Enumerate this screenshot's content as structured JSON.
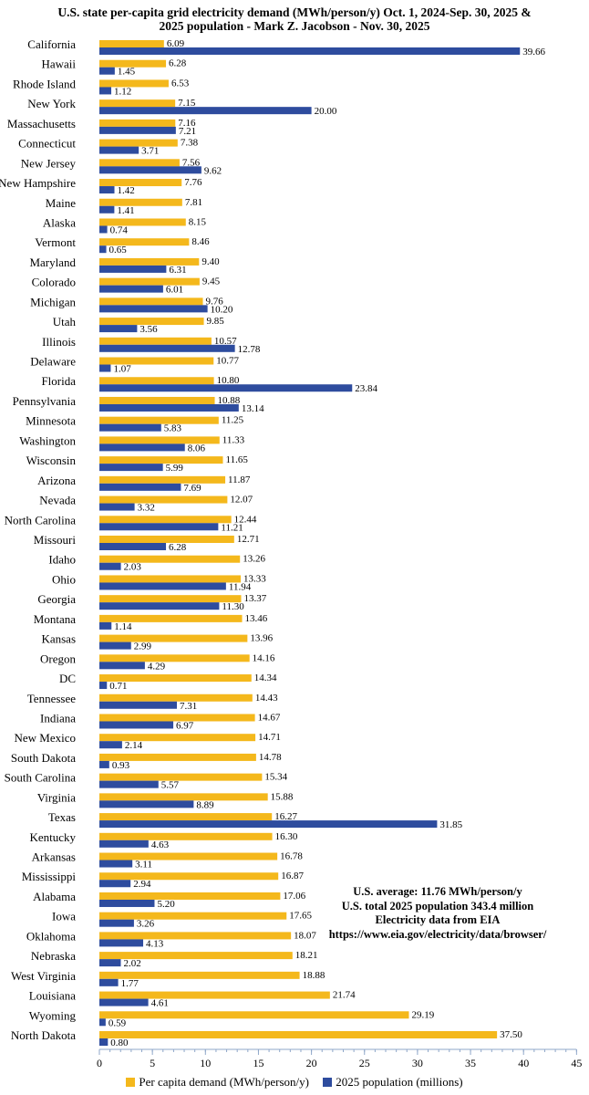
{
  "title": {
    "line1": "U.S. state per-capita grid electricity demand (MWh/person/y) Oct. 1, 2024-Sep. 30, 2025 &",
    "line2": "2025 population - Mark Z. Jacobson - Nov. 30, 2025"
  },
  "annotation": {
    "line1": "U.S. average: 11.76 MWh/person/y",
    "line2": "U.S. total 2025 population 343.4 million",
    "line3": "Electricity data from EIA",
    "line4": "https://www.eia.gov/electricity/data/browser/"
  },
  "legend": {
    "series1": "Per capita demand (MWh/person/y)",
    "series2": "2025 population (millions)"
  },
  "colors": {
    "demand": "#F4B81C",
    "population": "#2E4C9E",
    "axis": "#8FA7C9"
  },
  "chart_data": {
    "type": "bar",
    "orientation": "horizontal",
    "title": "U.S. state per-capita grid electricity demand (MWh/person/y) Oct. 1, 2024-Sep. 30, 2025 & 2025 population - Mark Z. Jacobson - Nov. 30, 2025",
    "xlabel": "",
    "ylabel": "",
    "xlim": [
      0,
      45
    ],
    "xticks": [
      0,
      5,
      10,
      15,
      20,
      25,
      30,
      35,
      40,
      45
    ],
    "grid": false,
    "legend_position": "bottom",
    "categories": [
      "California",
      "Hawaii",
      "Rhode Island",
      "New York",
      "Massachusetts",
      "Connecticut",
      "New Jersey",
      "New Hampshire",
      "Maine",
      "Alaska",
      "Vermont",
      "Maryland",
      "Colorado",
      "Michigan",
      "Utah",
      "Illinois",
      "Delaware",
      "Florida",
      "Pennsylvania",
      "Minnesota",
      "Washington",
      "Wisconsin",
      "Arizona",
      "Nevada",
      "North Carolina",
      "Missouri",
      "Idaho",
      "Ohio",
      "Georgia",
      "Montana",
      "Kansas",
      "Oregon",
      "DC",
      "Tennessee",
      "Indiana",
      "New Mexico",
      "South Dakota",
      "South Carolina",
      "Virginia",
      "Texas",
      "Kentucky",
      "Arkansas",
      "Mississippi",
      "Alabama",
      "Iowa",
      "Oklahoma",
      "Nebraska",
      "West Virginia",
      "Louisiana",
      "Wyoming",
      "North Dakota"
    ],
    "series": [
      {
        "name": "Per capita demand (MWh/person/y)",
        "values": [
          6.09,
          6.28,
          6.53,
          7.15,
          7.16,
          7.38,
          7.56,
          7.76,
          7.81,
          8.15,
          8.46,
          9.4,
          9.45,
          9.76,
          9.85,
          10.57,
          10.77,
          10.8,
          10.88,
          11.25,
          11.33,
          11.65,
          11.87,
          12.07,
          12.44,
          12.71,
          13.26,
          13.33,
          13.37,
          13.46,
          13.96,
          14.16,
          14.34,
          14.43,
          14.67,
          14.71,
          14.78,
          15.34,
          15.88,
          16.27,
          16.3,
          16.78,
          16.87,
          17.06,
          17.65,
          18.07,
          18.21,
          18.88,
          21.74,
          29.19,
          37.5
        ],
        "labels": [
          "6.09",
          "6.28",
          "6.53",
          "7.15",
          "7.16",
          "7.38",
          "7.56",
          "7.76",
          "7.81",
          "8.15",
          "8.46",
          "9.40",
          "9.45",
          "9.76",
          "9.85",
          "10.57",
          "10.77",
          "10.80",
          "10.88",
          "11.25",
          "11.33",
          "11.65",
          "11.87",
          "12.07",
          "12.44",
          "12.71",
          "13.26",
          "13.33",
          "13.37",
          "13.46",
          "13.96",
          "14.16",
          "14.34",
          "14.43",
          "14.67",
          "14.71",
          "14.78",
          "15.34",
          "15.88",
          "16.27",
          "16.30",
          "16.78",
          "16.87",
          "17.06",
          "17.65",
          "18.07",
          "18.21",
          "18.88",
          "21.74",
          "29.19",
          "37.50"
        ]
      },
      {
        "name": "2025 population (millions)",
        "values": [
          39.66,
          1.45,
          1.12,
          20.0,
          7.21,
          3.71,
          9.62,
          1.42,
          1.41,
          0.74,
          0.65,
          6.31,
          6.01,
          10.2,
          3.56,
          12.78,
          1.07,
          23.84,
          13.14,
          5.83,
          8.06,
          5.99,
          7.69,
          3.32,
          11.21,
          6.28,
          2.03,
          11.94,
          11.3,
          1.14,
          2.99,
          4.29,
          0.71,
          7.31,
          6.97,
          2.14,
          0.93,
          5.57,
          8.89,
          31.85,
          4.63,
          3.11,
          2.94,
          5.2,
          3.26,
          4.13,
          2.02,
          1.77,
          4.61,
          0.59,
          0.8
        ],
        "labels": [
          "39.66",
          "1.45",
          "1.12",
          "20.00",
          "7.21",
          "3.71",
          "9.62",
          "1.42",
          "1.41",
          "0.74",
          "0.65",
          "6.31",
          "6.01",
          "10.20",
          "3.56",
          "12.78",
          "1.07",
          "23.84",
          "13.14",
          "5.83",
          "8.06",
          "5.99",
          "7.69",
          "3.32",
          "11.21",
          "6.28",
          "2.03",
          "11.94",
          "11.30",
          "1.14",
          "2.99",
          "4.29",
          "0.71",
          "7.31",
          "6.97",
          "2.14",
          "0.93",
          "5.57",
          "8.89",
          "31.85",
          "4.63",
          "3.11",
          "2.94",
          "5.20",
          "3.26",
          "4.13",
          "2.02",
          "1.77",
          "4.61",
          "0.59",
          "0.80"
        ]
      }
    ]
  }
}
